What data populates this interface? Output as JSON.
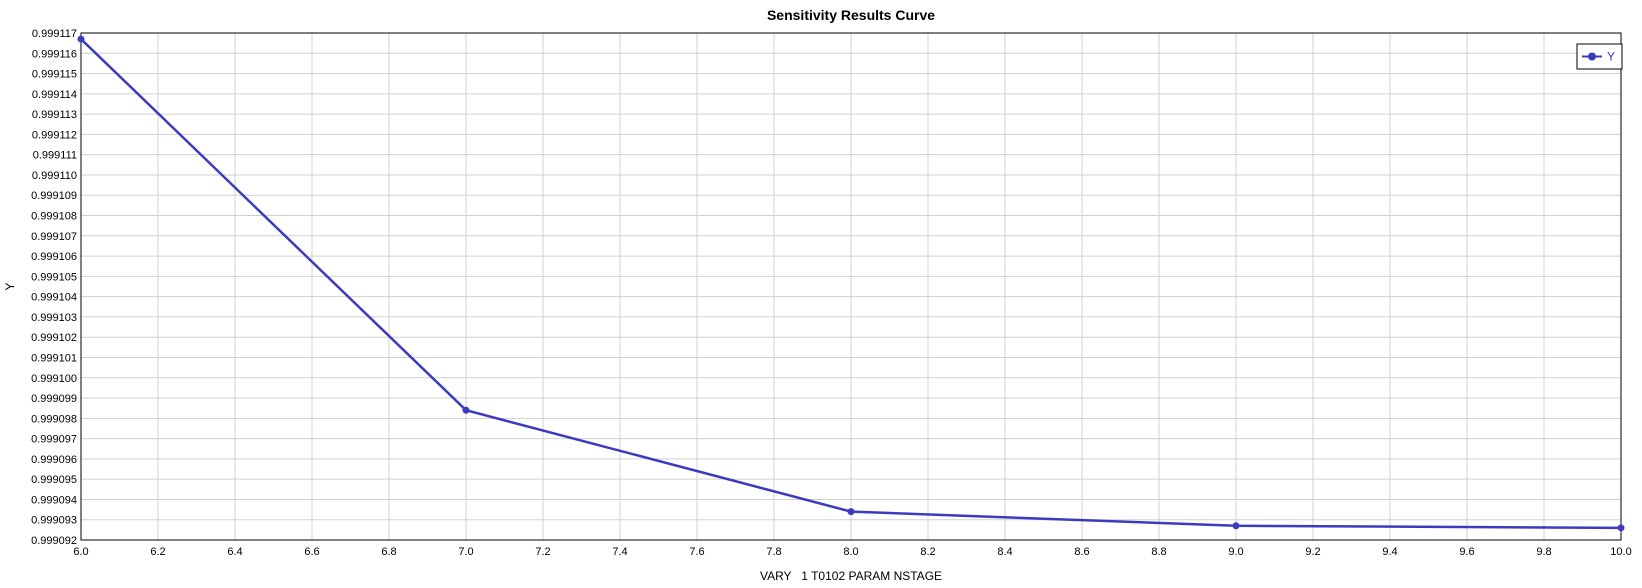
{
  "chart_data": {
    "type": "line",
    "title": "Sensitivity Results Curve",
    "xlabel": "VARY   1 T0102 PARAM NSTAGE",
    "ylabel": "Y",
    "xlim": [
      6.0,
      10.0
    ],
    "ylim": [
      0.999092,
      0.999117
    ],
    "x_ticks": [
      "6.0",
      "6.2",
      "6.4",
      "6.6",
      "6.8",
      "7.0",
      "7.2",
      "7.4",
      "7.6",
      "7.8",
      "8.0",
      "8.2",
      "8.4",
      "8.6",
      "8.8",
      "9.0",
      "9.2",
      "9.4",
      "9.6",
      "9.8",
      "10.0"
    ],
    "y_ticks": [
      "0.999092",
      "0.999093",
      "0.999094",
      "0.999095",
      "0.999096",
      "0.999097",
      "0.999098",
      "0.999099",
      "0.999100",
      "0.999101",
      "0.999102",
      "0.999103",
      "0.999104",
      "0.999105",
      "0.999106",
      "0.999107",
      "0.999108",
      "0.999109",
      "0.999110",
      "0.999111",
      "0.999112",
      "0.999113",
      "0.999114",
      "0.999115",
      "0.999116",
      "0.999117"
    ],
    "grid": true,
    "legend_position": "top-right",
    "series": [
      {
        "name": "Y",
        "color": "#3b3bc0",
        "x": [
          6.0,
          7.0,
          8.0,
          9.0,
          10.0
        ],
        "y": [
          0.9991167,
          0.9990984,
          0.9990934,
          0.9990927,
          0.9990926
        ]
      }
    ]
  }
}
